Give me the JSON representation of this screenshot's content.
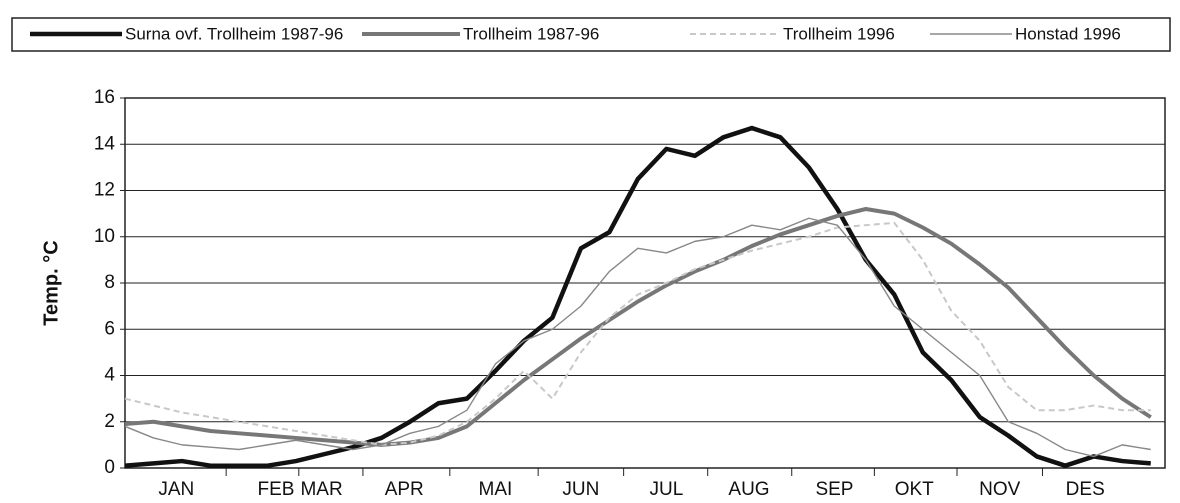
{
  "chart_data": {
    "type": "line",
    "ylabel": "Temp. °C",
    "x": [
      0,
      10,
      20,
      30,
      40,
      50,
      60,
      70,
      80,
      90,
      100,
      110,
      120,
      130,
      140,
      150,
      160,
      170,
      180,
      190,
      200,
      210,
      220,
      230,
      240,
      250,
      260,
      270,
      280,
      290,
      300,
      310,
      320,
      330,
      340,
      350,
      360
    ],
    "xlim": [
      0,
      365
    ],
    "xticks": [
      {
        "value": 18,
        "label": "JAN"
      },
      {
        "value": 53,
        "label": "FEB"
      },
      {
        "value": 69,
        "label": "MAR"
      },
      {
        "value": 98,
        "label": "APR"
      },
      {
        "value": 130,
        "label": "MAI"
      },
      {
        "value": 160,
        "label": "JUN"
      },
      {
        "value": 190,
        "label": "JUL"
      },
      {
        "value": 219,
        "label": "AUG"
      },
      {
        "value": 249,
        "label": "SEP"
      },
      {
        "value": 277,
        "label": "OKT"
      },
      {
        "value": 307,
        "label": "NOV"
      },
      {
        "value": 337,
        "label": "DES"
      }
    ],
    "ylim": [
      0,
      16
    ],
    "yticks": [
      0,
      2,
      4,
      6,
      8,
      10,
      12,
      14,
      16
    ],
    "grid": true,
    "legend": "top",
    "series": [
      {
        "name": "Surna ovf. Trollheim 1987-96",
        "color": "#111111",
        "values": [
          0.1,
          0.2,
          0.3,
          0.1,
          0.1,
          0.1,
          0.3,
          0.6,
          0.9,
          1.3,
          2.0,
          2.8,
          3.0,
          4.2,
          5.5,
          6.5,
          9.5,
          10.2,
          12.5,
          13.8,
          13.5,
          14.3,
          14.7,
          14.3,
          13.0,
          11.2,
          9.0,
          7.5,
          5.0,
          3.8,
          2.2,
          1.4,
          0.5,
          0.1,
          0.5,
          0.3,
          0.2
        ]
      },
      {
        "name": "Trollheim 1987-96",
        "color": "#777777",
        "values": [
          1.9,
          2.0,
          1.8,
          1.6,
          1.5,
          1.4,
          1.3,
          1.2,
          1.1,
          1.0,
          1.1,
          1.3,
          1.8,
          2.8,
          3.8,
          4.7,
          5.6,
          6.4,
          7.2,
          7.9,
          8.5,
          9.0,
          9.6,
          10.1,
          10.5,
          10.9,
          11.2,
          11.0,
          10.4,
          9.7,
          8.8,
          7.8,
          6.5,
          5.2,
          4.0,
          3.0,
          2.2
        ]
      },
      {
        "name": "Trollheim 1996",
        "color": "#c8c8c8",
        "values": [
          3.0,
          2.7,
          2.4,
          2.2,
          2.0,
          1.8,
          1.6,
          1.4,
          1.2,
          1.0,
          1.1,
          1.4,
          2.0,
          3.0,
          4.2,
          3.0,
          5.0,
          6.5,
          7.5,
          8.0,
          8.6,
          9.0,
          9.4,
          9.7,
          10.0,
          10.4,
          10.5,
          10.6,
          9.0,
          6.8,
          5.5,
          3.5,
          2.5,
          2.5,
          2.7,
          2.5,
          2.5
        ]
      },
      {
        "name": "Honstad 1996",
        "color": "#888888",
        "values": [
          1.8,
          1.3,
          1.0,
          0.9,
          0.8,
          1.0,
          1.2,
          1.0,
          0.8,
          1.0,
          1.5,
          1.8,
          2.5,
          4.5,
          5.5,
          6.0,
          7.0,
          8.5,
          9.5,
          9.3,
          9.8,
          10.0,
          10.5,
          10.3,
          10.8,
          10.5,
          9.0,
          7.0,
          6.0,
          5.0,
          4.0,
          2.0,
          1.5,
          0.8,
          0.5,
          1.0,
          0.8
        ]
      }
    ]
  }
}
